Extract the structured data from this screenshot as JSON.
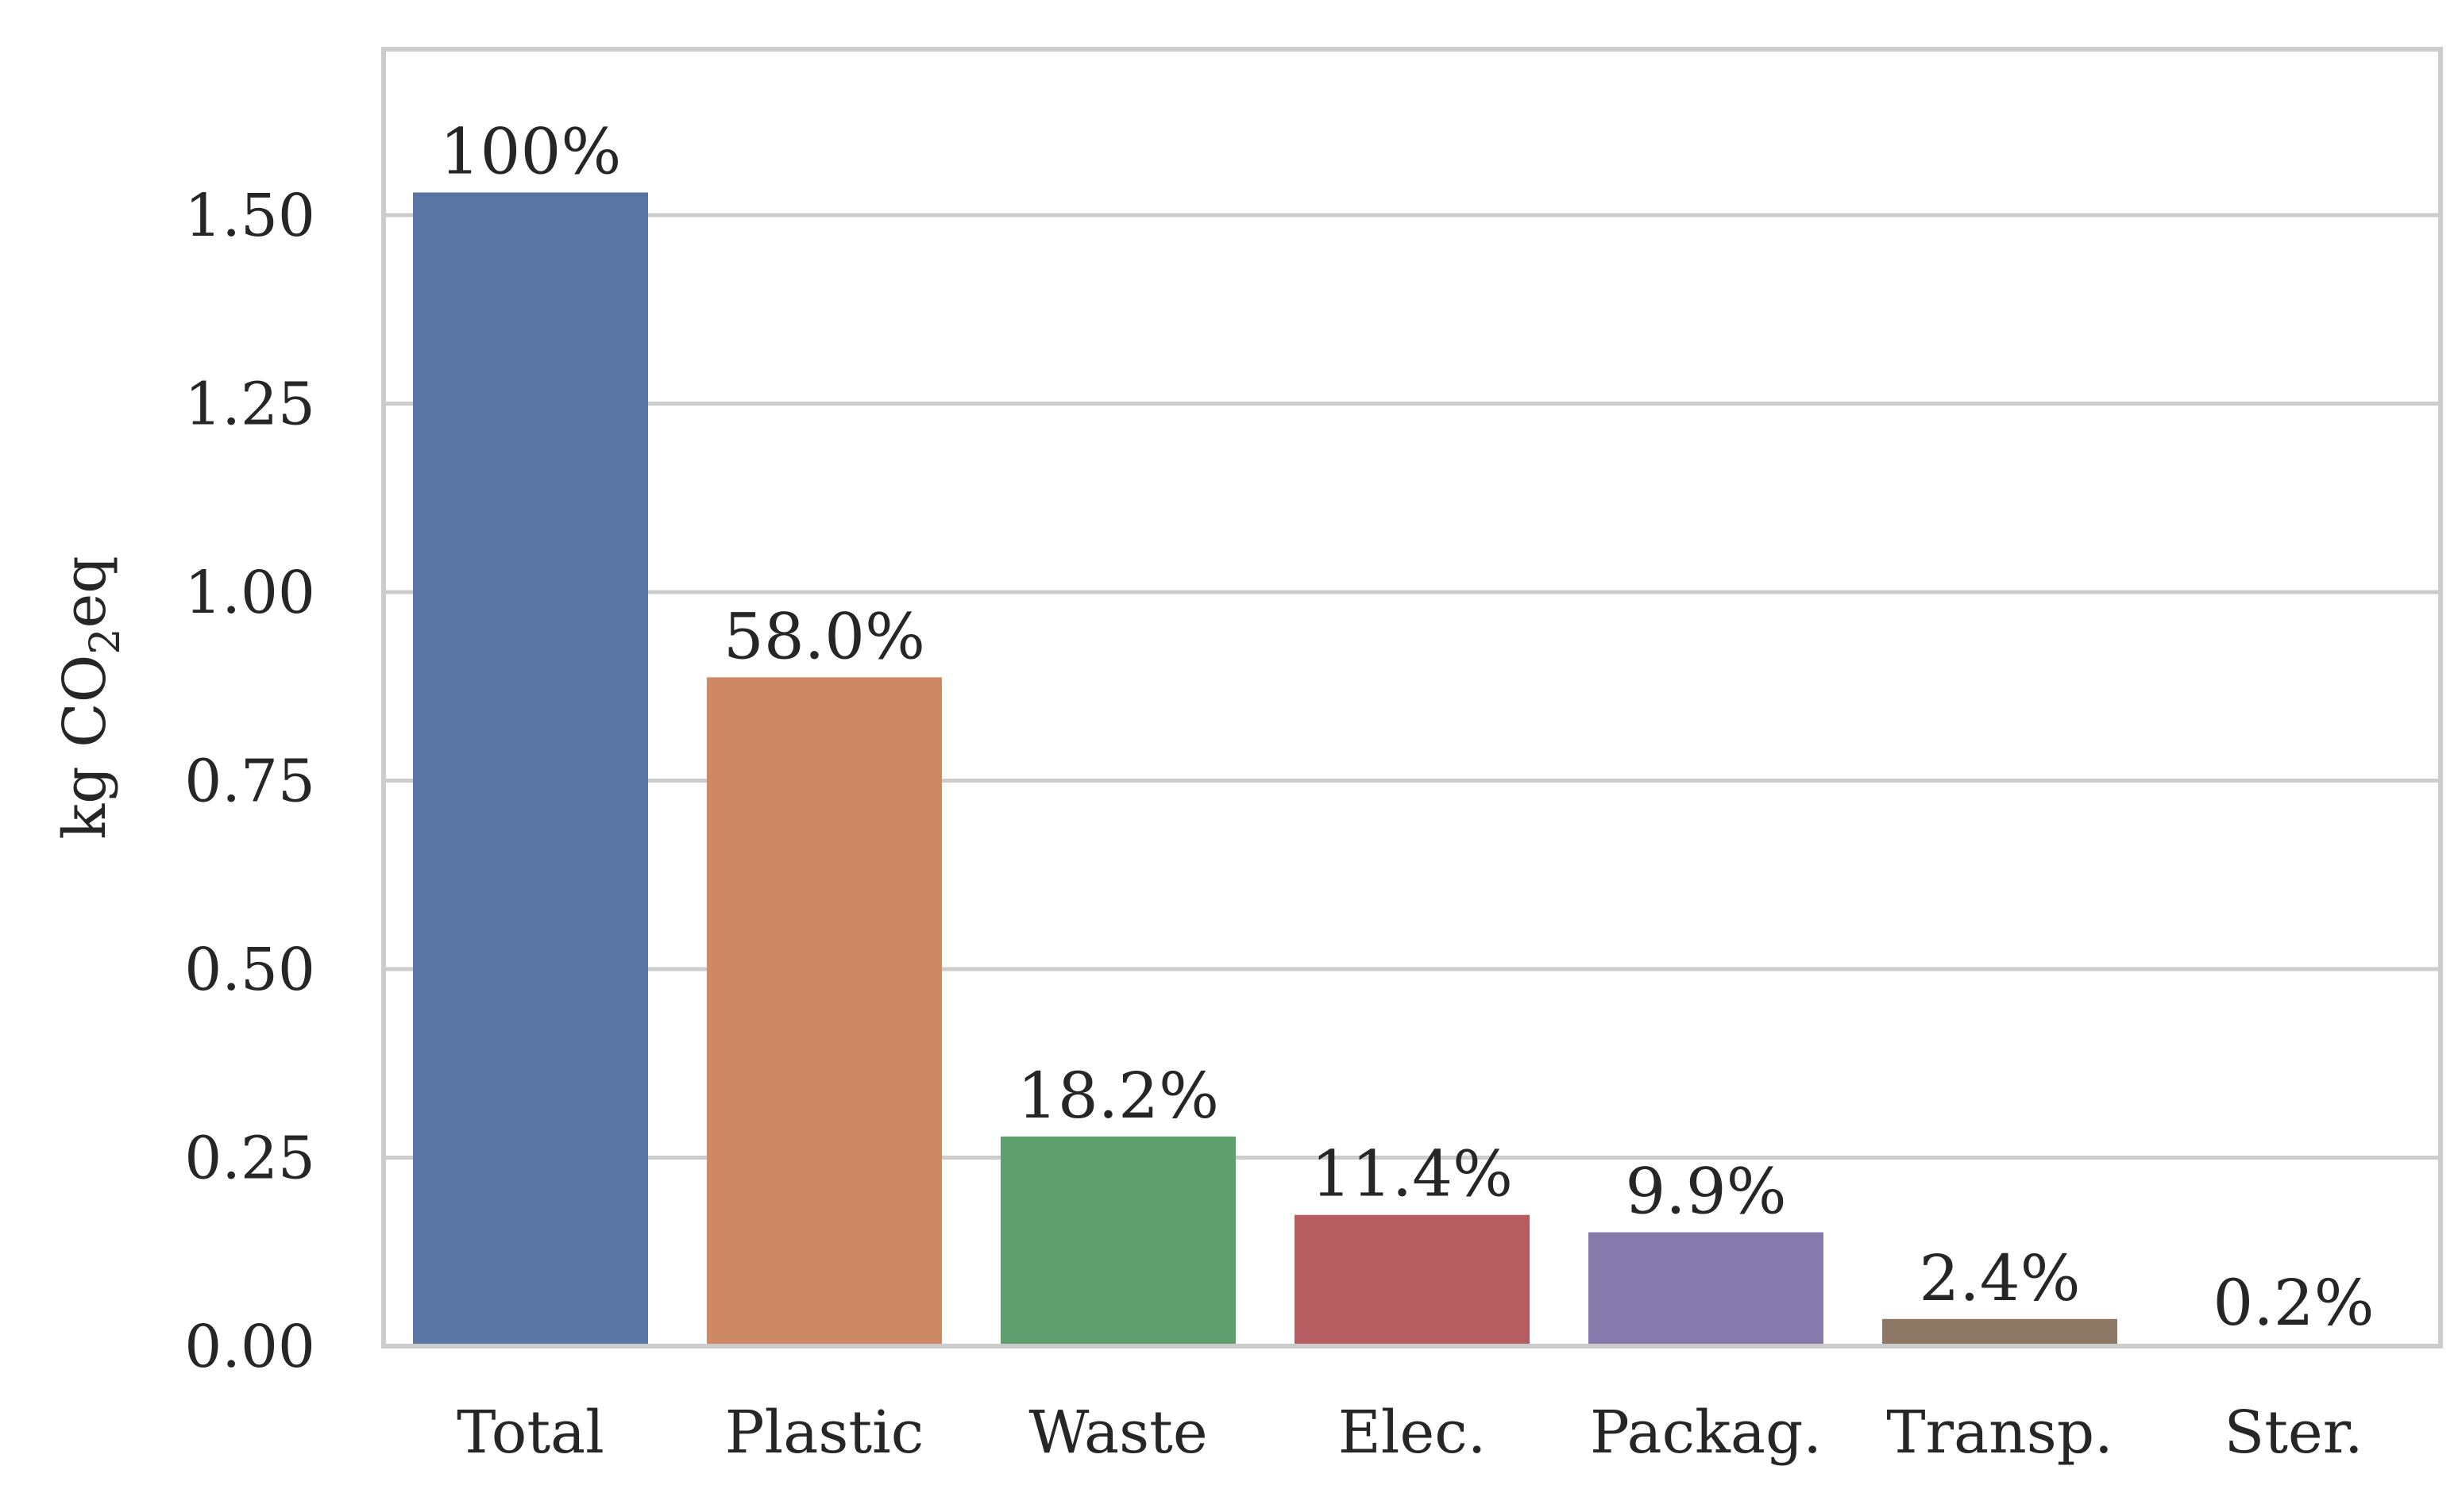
{
  "chart_data": {
    "type": "bar",
    "title": "",
    "xlabel": "",
    "ylabel": "kg CO",
    "ylabel_subscript": "2",
    "ylabel_suffix": "eq",
    "categories": [
      "Total",
      "Plastic",
      "Waste",
      "Elec.",
      "Packag.",
      "Transp.",
      "Ster."
    ],
    "values": [
      1.53,
      0.887,
      0.278,
      0.174,
      0.151,
      0.036,
      0.003
    ],
    "data_labels": [
      "100%",
      "58.0%",
      "18.2%",
      "11.4%",
      "9.9%",
      "2.4%",
      "0.2%"
    ],
    "colors": [
      "#5975a4",
      "#cc8963",
      "#5f9e6e",
      "#b55d60",
      "#857aab",
      "#8d7866",
      "#d095bf"
    ],
    "ylim": [
      0,
      1.72
    ],
    "yticks": [
      0,
      0.25,
      0.5,
      0.75,
      1.0,
      1.25,
      1.5
    ],
    "ytick_labels": [
      "0.00",
      "0.25",
      "0.50",
      "0.75",
      "1.00",
      "1.25",
      "1.50"
    ],
    "grid": "horizontal",
    "frame_color": "#cccccc"
  }
}
